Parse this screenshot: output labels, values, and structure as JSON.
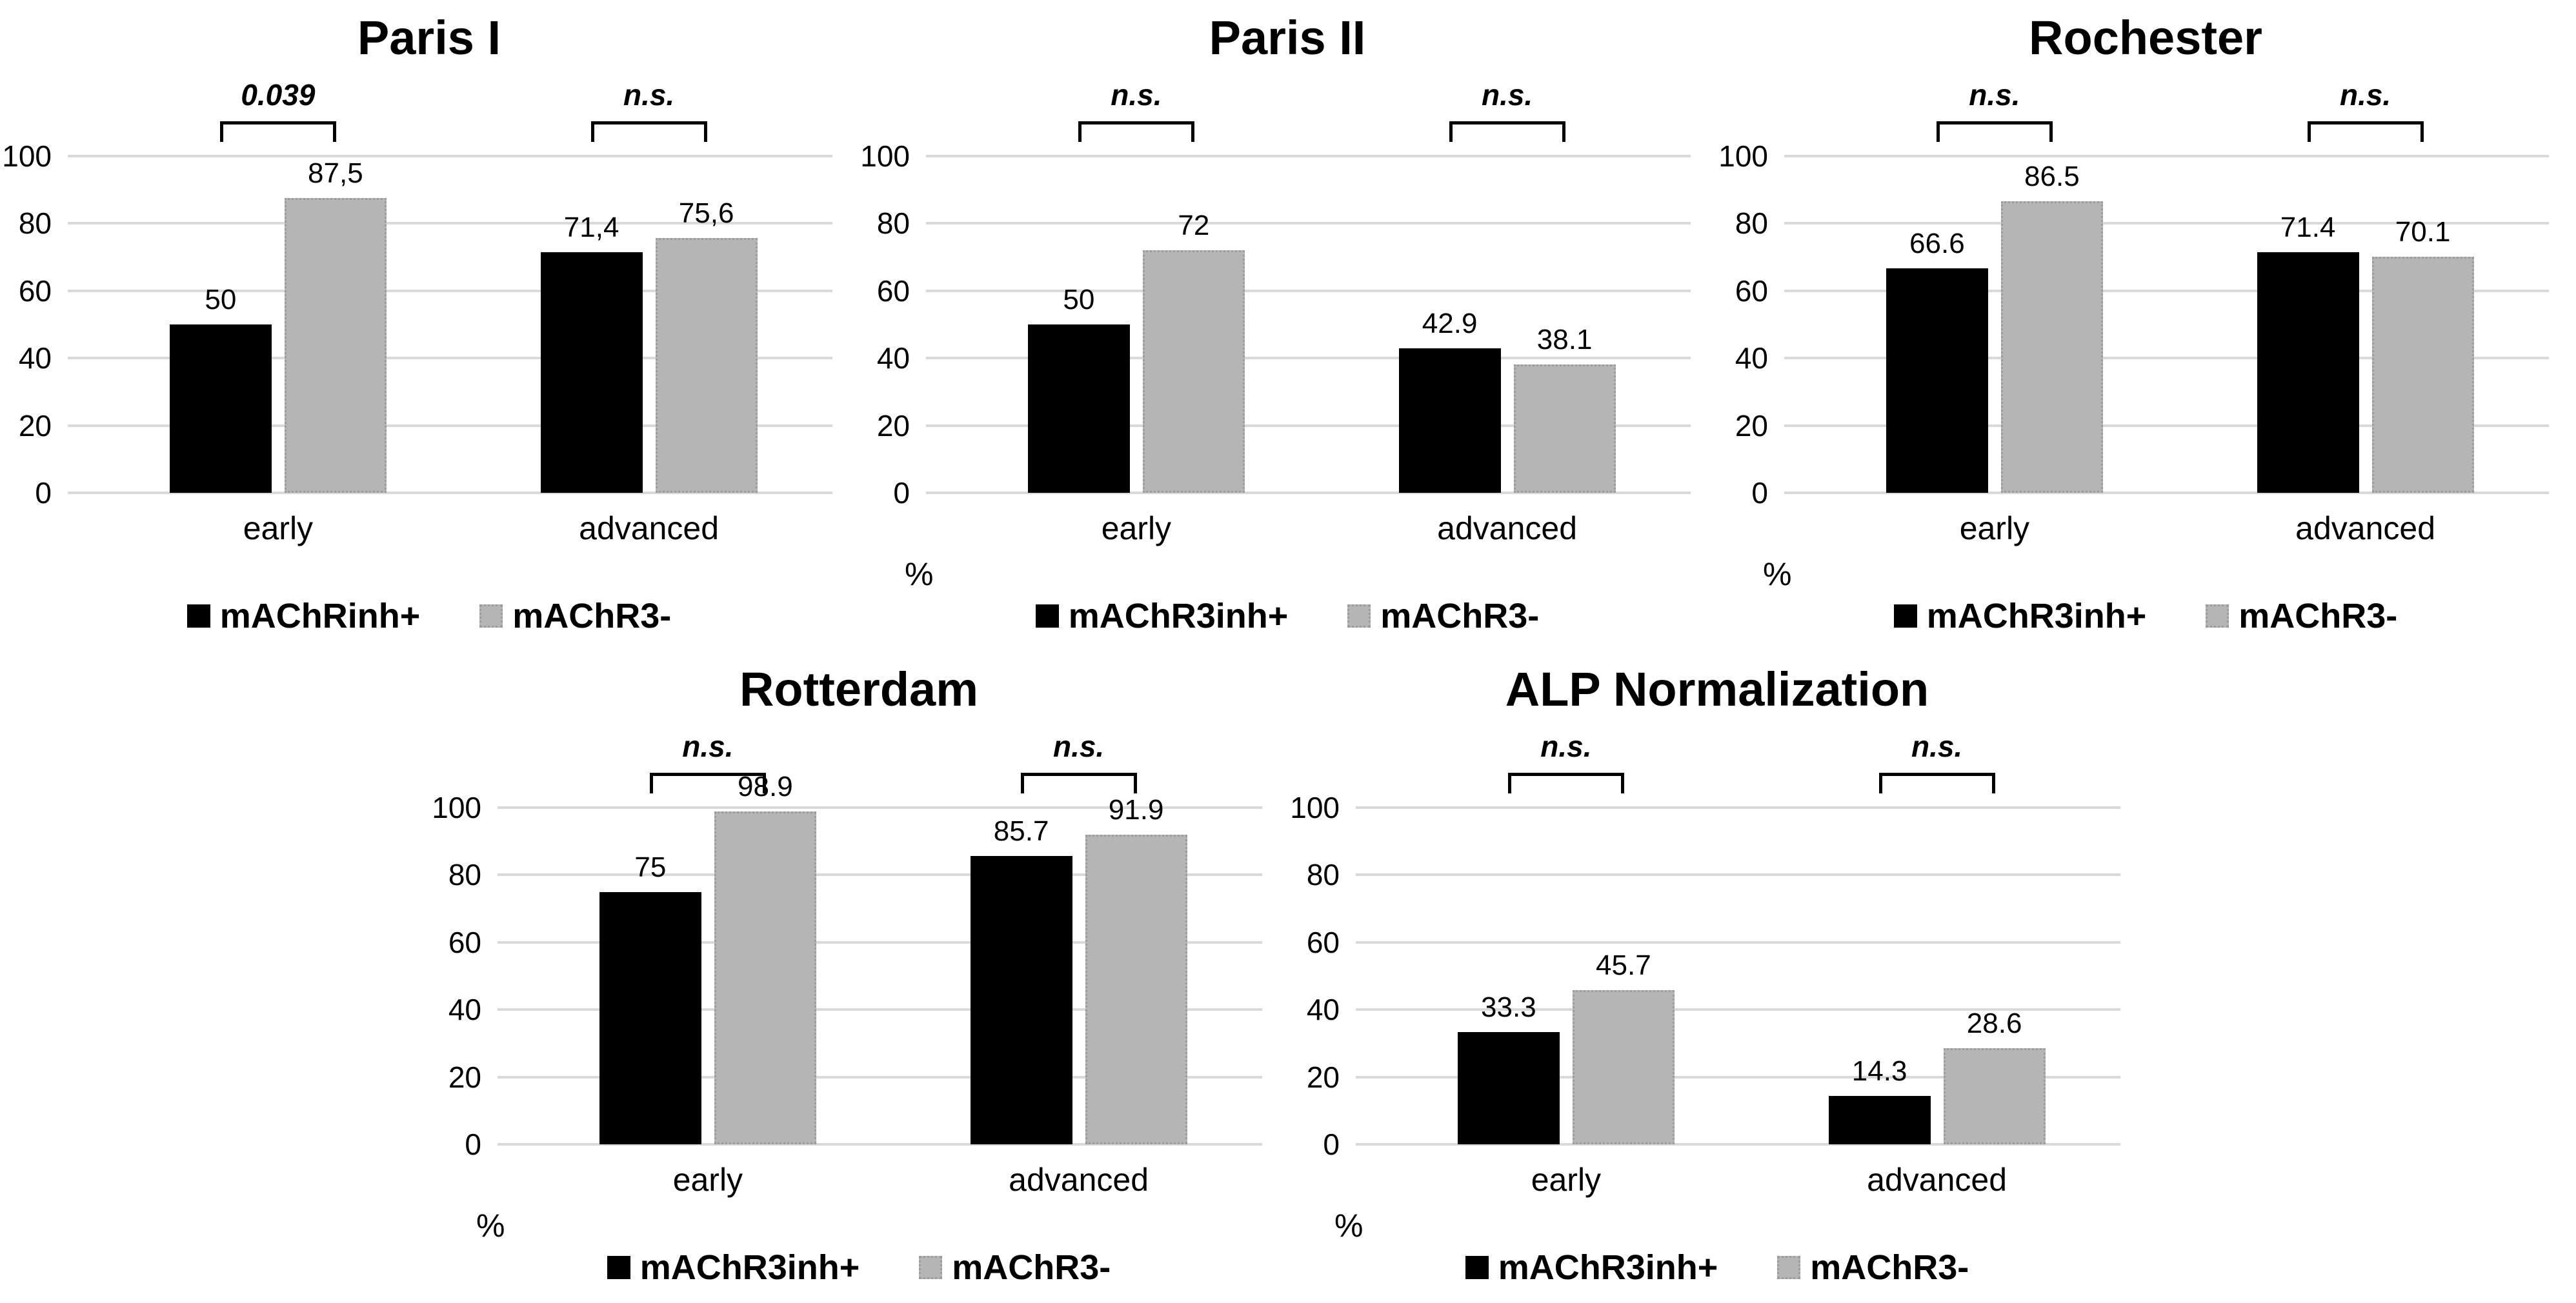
{
  "figure": {
    "background": "#ffffff"
  },
  "colors": {
    "bar_primary": "#000000",
    "bar_secondary": "#b5b5b5",
    "bar_secondary_border": "#9b9b9b",
    "gridline": "#d9d9d9",
    "text": "#000000"
  },
  "axis": {
    "ticks": [
      100,
      80,
      60,
      40,
      20,
      0
    ],
    "unit_label": "%",
    "ymin": 0,
    "ymax": 100
  },
  "chart_data": [
    {
      "type": "bar",
      "title": "Paris I",
      "categories": [
        "early",
        "advanced"
      ],
      "series": [
        {
          "name": "mAChRinh+",
          "role": "primary",
          "values": [
            50,
            71.4
          ],
          "value_labels": [
            "50",
            "71,4"
          ]
        },
        {
          "name": "mAChR3-",
          "role": "secondary",
          "values": [
            87.5,
            75.6
          ],
          "value_labels": [
            "87,5",
            "75,6"
          ]
        }
      ],
      "significance": [
        "0.039",
        "n.s."
      ],
      "ylim": [
        0,
        100
      ],
      "grid": true,
      "legend_position": "bottom",
      "show_unit_label": false
    },
    {
      "type": "bar",
      "title": "Paris II",
      "categories": [
        "early",
        "advanced"
      ],
      "series": [
        {
          "name": "mAChR3inh+",
          "role": "primary",
          "values": [
            50,
            42.9
          ],
          "value_labels": [
            "50",
            "42.9"
          ]
        },
        {
          "name": "mAChR3-",
          "role": "secondary",
          "values": [
            72,
            38.1
          ],
          "value_labels": [
            "72",
            "38.1"
          ]
        }
      ],
      "significance": [
        "n.s.",
        "n.s."
      ],
      "ylim": [
        0,
        100
      ],
      "grid": true,
      "legend_position": "bottom",
      "show_unit_label": true
    },
    {
      "type": "bar",
      "title": "Rochester",
      "categories": [
        "early",
        "advanced"
      ],
      "series": [
        {
          "name": "mAChR3inh+",
          "role": "primary",
          "values": [
            66.6,
            71.4
          ],
          "value_labels": [
            "66.6",
            "71.4"
          ]
        },
        {
          "name": "mAChR3-",
          "role": "secondary",
          "values": [
            86.5,
            70.1
          ],
          "value_labels": [
            "86.5",
            "70.1"
          ]
        }
      ],
      "significance": [
        "n.s.",
        "n.s."
      ],
      "ylim": [
        0,
        100
      ],
      "grid": true,
      "legend_position": "bottom",
      "show_unit_label": true
    },
    {
      "type": "bar",
      "title": "Rotterdam",
      "categories": [
        "early",
        "advanced"
      ],
      "series": [
        {
          "name": "mAChR3inh+",
          "role": "primary",
          "values": [
            75,
            85.7
          ],
          "value_labels": [
            "75",
            "85.7"
          ]
        },
        {
          "name": "mAChR3-",
          "role": "secondary",
          "values": [
            98.9,
            91.9
          ],
          "value_labels": [
            "98.9",
            "91.9"
          ]
        }
      ],
      "significance": [
        "n.s.",
        "n.s."
      ],
      "ylim": [
        0,
        100
      ],
      "grid": true,
      "legend_position": "bottom",
      "show_unit_label": true
    },
    {
      "type": "bar",
      "title": "ALP Normalization",
      "categories": [
        "early",
        "advanced"
      ],
      "series": [
        {
          "name": "mAChR3inh+",
          "role": "primary",
          "values": [
            33.3,
            14.3
          ],
          "value_labels": [
            "33.3",
            "14.3"
          ]
        },
        {
          "name": "mAChR3-",
          "role": "secondary",
          "values": [
            45.7,
            28.6
          ],
          "value_labels": [
            "45.7",
            "28.6"
          ]
        }
      ],
      "significance": [
        "n.s.",
        "n.s."
      ],
      "ylim": [
        0,
        100
      ],
      "grid": true,
      "legend_position": "bottom",
      "show_unit_label": true
    }
  ]
}
